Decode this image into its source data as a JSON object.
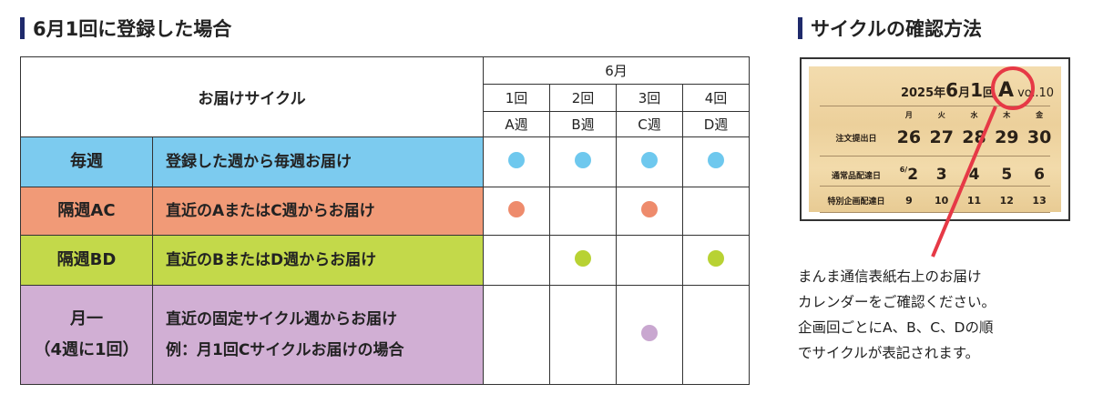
{
  "left": {
    "title": "6月1回に登録した場合"
  },
  "right": {
    "title": "サイクルの確認方法"
  },
  "table": {
    "header_label": "お届けサイクル",
    "month": "6月",
    "weeks": [
      {
        "n": "1回",
        "w": "A週"
      },
      {
        "n": "2回",
        "w": "B週"
      },
      {
        "n": "3回",
        "w": "C週"
      },
      {
        "n": "4回",
        "w": "D週"
      }
    ],
    "rows": [
      {
        "label": "毎週",
        "desc": "登録した週から毎週お届け",
        "desc2": "",
        "color": "#7ccbef",
        "dot": "#6ec8ee",
        "weeks": [
          1,
          1,
          1,
          1
        ]
      },
      {
        "label": "隔週AC",
        "desc": "直近のAまたはC週からお届け",
        "desc2": "",
        "color": "#f19a77",
        "dot": "#ee8b6c",
        "weeks": [
          1,
          0,
          1,
          0
        ]
      },
      {
        "label": "隔週BD",
        "desc": "直近のBまたはD週からお届け",
        "desc2": "",
        "color": "#c3d94a",
        "dot": "#b8d233",
        "weeks": [
          0,
          1,
          0,
          1
        ]
      },
      {
        "label": "月一",
        "label2": "（4週に1回）",
        "desc": "直近の固定サイクル週からお届け",
        "desc2": "例：月1回Cサイクルお届けの場合",
        "color": "#d1afd4",
        "dot": "#c9a7d0",
        "weeks": [
          0,
          0,
          1,
          0
        ]
      }
    ]
  },
  "calendar": {
    "year": "2025年",
    "month": "6",
    "month_unit": "月",
    "issue": "1",
    "issue_unit": "回",
    "cycle": "A",
    "vol": "vol.10",
    "days": [
      "月",
      "火",
      "水",
      "木",
      "金"
    ],
    "rows": [
      {
        "label": "注文提出日",
        "values": [
          "26",
          "27",
          "28",
          "29",
          "30"
        ]
      },
      {
        "label": "通常品配達日",
        "prefix": "6/",
        "values": [
          "2",
          "3",
          "4",
          "5",
          "6"
        ]
      },
      {
        "label": "特別企画配達日",
        "values": [
          "9",
          "10",
          "11",
          "12",
          "13"
        ]
      }
    ]
  },
  "note": [
    "まんま通信表紙右上のお届け",
    "カレンダーをご確認ください。",
    "企画回ごとにA、B、C、Dの順",
    "でサイクルが表記されます。"
  ]
}
